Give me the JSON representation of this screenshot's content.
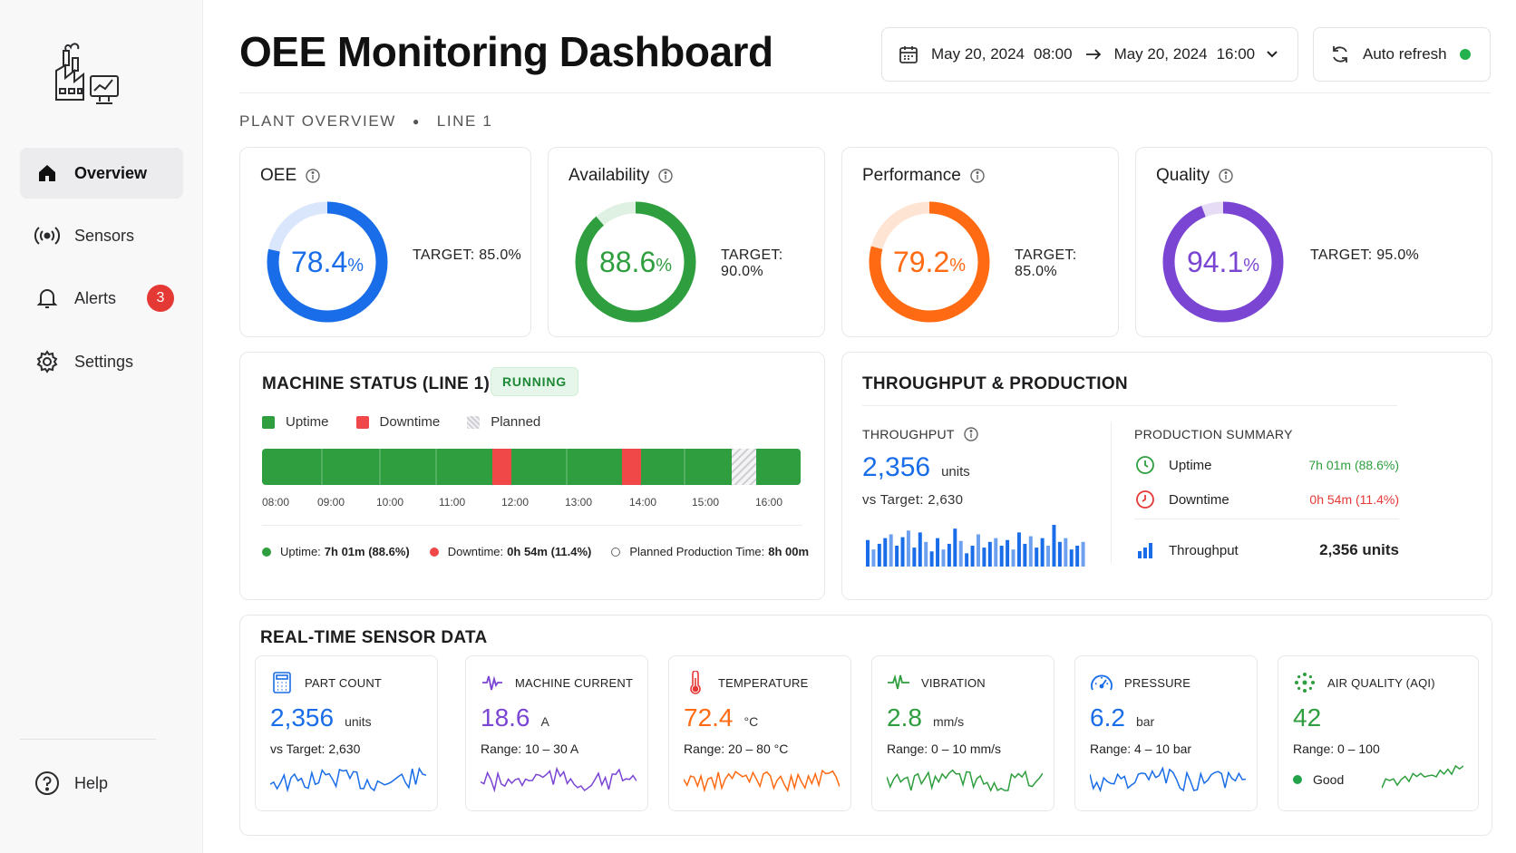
{
  "sidebar": {
    "items": [
      {
        "label": "Overview",
        "icon": "home-icon"
      },
      {
        "label": "Sensors",
        "icon": "broadcast-icon"
      },
      {
        "label": "Alerts",
        "icon": "bell-icon",
        "badge": "3"
      },
      {
        "label": "Settings",
        "icon": "gear-icon"
      }
    ],
    "help": "Help"
  },
  "header": {
    "title": "OEE Monitoring Dashboard",
    "date_from": "May 20, 2024",
    "time_from": "08:00",
    "date_to": "May 20, 2024",
    "time_to": "16:00",
    "auto_refresh": "Auto refresh"
  },
  "breadcrumb": {
    "plant": "PLANT OVERVIEW",
    "line": "LINE 1"
  },
  "kpis": [
    {
      "name": "OEE",
      "value": "78.4",
      "pct": "%",
      "fraction": 0.784,
      "target": "TARGET:  85.0%",
      "color": "#1a6de8",
      "track": "#d9e6fb"
    },
    {
      "name": "Availability",
      "value": "88.6",
      "pct": "%",
      "fraction": 0.886,
      "target": "TARGET:  90.0%",
      "color": "#2e9e3e",
      "track": "#dff1e2"
    },
    {
      "name": "Performance",
      "value": "79.2",
      "pct": "%",
      "fraction": 0.792,
      "target": "TARGET:  85.0%",
      "color": "#ff6a13",
      "track": "#fde4d3"
    },
    {
      "name": "Quality",
      "value": "94.1",
      "pct": "%",
      "fraction": 0.941,
      "target": "TARGET:  95.0%",
      "color": "#7b45d4",
      "track": "#e6dcf6"
    }
  ],
  "machine_status": {
    "title": "MACHINE STATUS (LINE 1)",
    "badge": "RUNNING",
    "legend": {
      "uptime": "Uptime",
      "downtime": "Downtime",
      "planned": "Planned"
    },
    "ticks": [
      "08:00",
      "09:00",
      "10:00",
      "11:00",
      "12:00",
      "13:00",
      "14:00",
      "15:00",
      "16:00"
    ],
    "summary": {
      "uptime_label": "Uptime:",
      "uptime_value": "7h 01m (88.6%)",
      "downtime_label": "Downtime:",
      "downtime_value": "0h 54m (11.4%)",
      "planned_label": "Planned Production Time:",
      "planned_value": "8h 00m"
    }
  },
  "throughput": {
    "title": "THROUGHPUT & PRODUCTION",
    "label": "THROUGHPUT",
    "value": "2,356",
    "unit": "units",
    "vs_target": "vs Target: 2,630",
    "bars": [
      28,
      18,
      24,
      30,
      34,
      22,
      31,
      38,
      20,
      36,
      26,
      16,
      30,
      18,
      24,
      40,
      27,
      14,
      22,
      34,
      20,
      26,
      30,
      22,
      28,
      18,
      36,
      24,
      32,
      20,
      30,
      22,
      44,
      26,
      30,
      18,
      22,
      26
    ],
    "summary_title": "PRODUCTION SUMMARY",
    "uptime_label": "Uptime",
    "uptime_value": "7h 01m (88.6%)",
    "downtime_label": "Downtime",
    "downtime_value": "0h 54m (11.4%)",
    "throughput_label": "Throughput",
    "throughput_value": "2,356 units"
  },
  "sensors_section": {
    "title": "REAL-TIME SENSOR DATA",
    "cards": [
      {
        "name": "PART COUNT",
        "value": "2,356",
        "unit": "units",
        "sub": "vs Target:  2,630",
        "color": "#1a6de8",
        "icon": "calculator-icon"
      },
      {
        "name": "MACHINE CURRENT",
        "value": "18.6",
        "unit": "A",
        "sub": "Range: 10 – 30 A",
        "color": "#7b45d4",
        "icon": "pulse-icon"
      },
      {
        "name": "TEMPERATURE",
        "value": "72.4",
        "unit": "°C",
        "sub": "Range: 20 – 80 °C",
        "color": "#ff6a13",
        "icon": "thermometer-icon"
      },
      {
        "name": "VIBRATION",
        "value": "2.8",
        "unit": "mm/s",
        "sub": "Range: 0 – 10 mm/s",
        "color": "#2e9e3e",
        "icon": "heartbeat-icon"
      },
      {
        "name": "PRESSURE",
        "value": "6.2",
        "unit": "bar",
        "sub": "Range:  4 – 10 bar",
        "color": "#1a6de8",
        "icon": "gauge-icon"
      },
      {
        "name": "AIR QUALITY (AQI)",
        "value": "42",
        "unit": "",
        "sub": "Range: 0 – 100",
        "color": "#2e9e3e",
        "icon": "air-quality-icon",
        "status": "Good"
      }
    ]
  }
}
